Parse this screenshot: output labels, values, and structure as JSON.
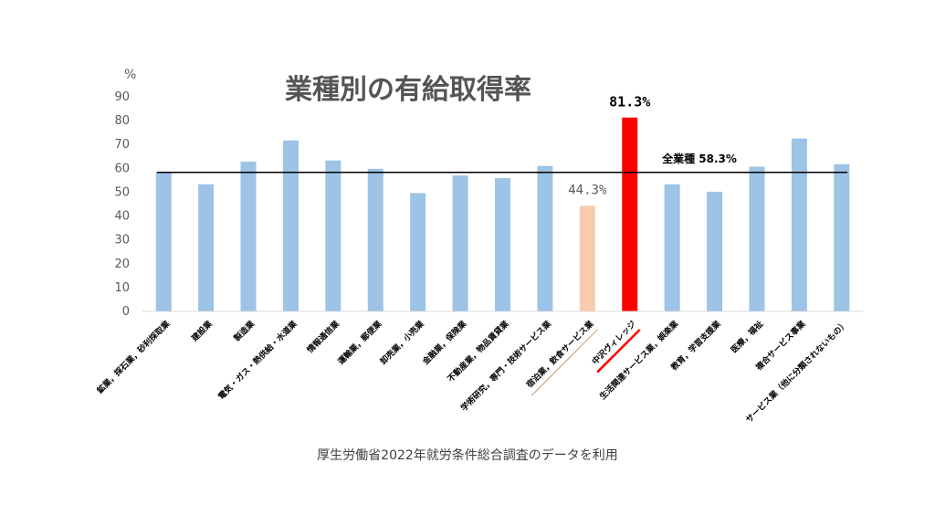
{
  "chart_data": {
    "type": "bar",
    "title": "業種別の有給取得率",
    "ylabel": "%",
    "ylim": [
      0,
      90
    ],
    "yticks": [
      0,
      10,
      20,
      30,
      40,
      50,
      60,
      70,
      80,
      90
    ],
    "grid": false,
    "categories": [
      "鉱業，採石業，砂利採取業",
      "建設業",
      "製造業",
      "電気・ガス・熱供給・水道業",
      "情報通信業",
      "運輸業，郵便業",
      "卸売業，小売業",
      "金融業，保険業",
      "不動産業，物品賃貸業",
      "学術研究，専門・技術サービス業",
      "宿泊業，飲食サービス業",
      "中沢ヴィレッジ",
      "生活関連サービス業，娯楽業",
      "教育，学習支援業",
      "医療，福祉",
      "複合サービス事業",
      "サービス業（他に分類されないもの）"
    ],
    "values": [
      58.5,
      53.3,
      62.8,
      71.7,
      63.3,
      59.8,
      49.6,
      57.0,
      55.9,
      61.0,
      44.3,
      81.3,
      53.3,
      50.2,
      60.7,
      72.5,
      61.7
    ],
    "colors": {
      "default": "#9DC3E6",
      "highlight_light": "#F8CBAD",
      "highlight_strong": "#FF0000",
      "axis": "#D9D9D9",
      "reference_line": "#000000"
    },
    "bar_colors": [
      "default",
      "default",
      "default",
      "default",
      "default",
      "default",
      "default",
      "default",
      "default",
      "default",
      "highlight_light",
      "highlight_strong",
      "default",
      "default",
      "default",
      "default",
      "default"
    ],
    "data_labels": {
      "宿泊業，飲食サービス業": "44.3%",
      "中沢ヴィレッジ": "81.3%"
    },
    "reference_line": {
      "value": 58.3,
      "label": "全業種 58.3%"
    },
    "category_underlines": {
      "宿泊業，飲食サービス業": "#C9A98A",
      "中沢ヴィレッジ": "#FF0000"
    },
    "source_note": "厚生労働省2022年就労条件総合調査のデータを利用"
  }
}
